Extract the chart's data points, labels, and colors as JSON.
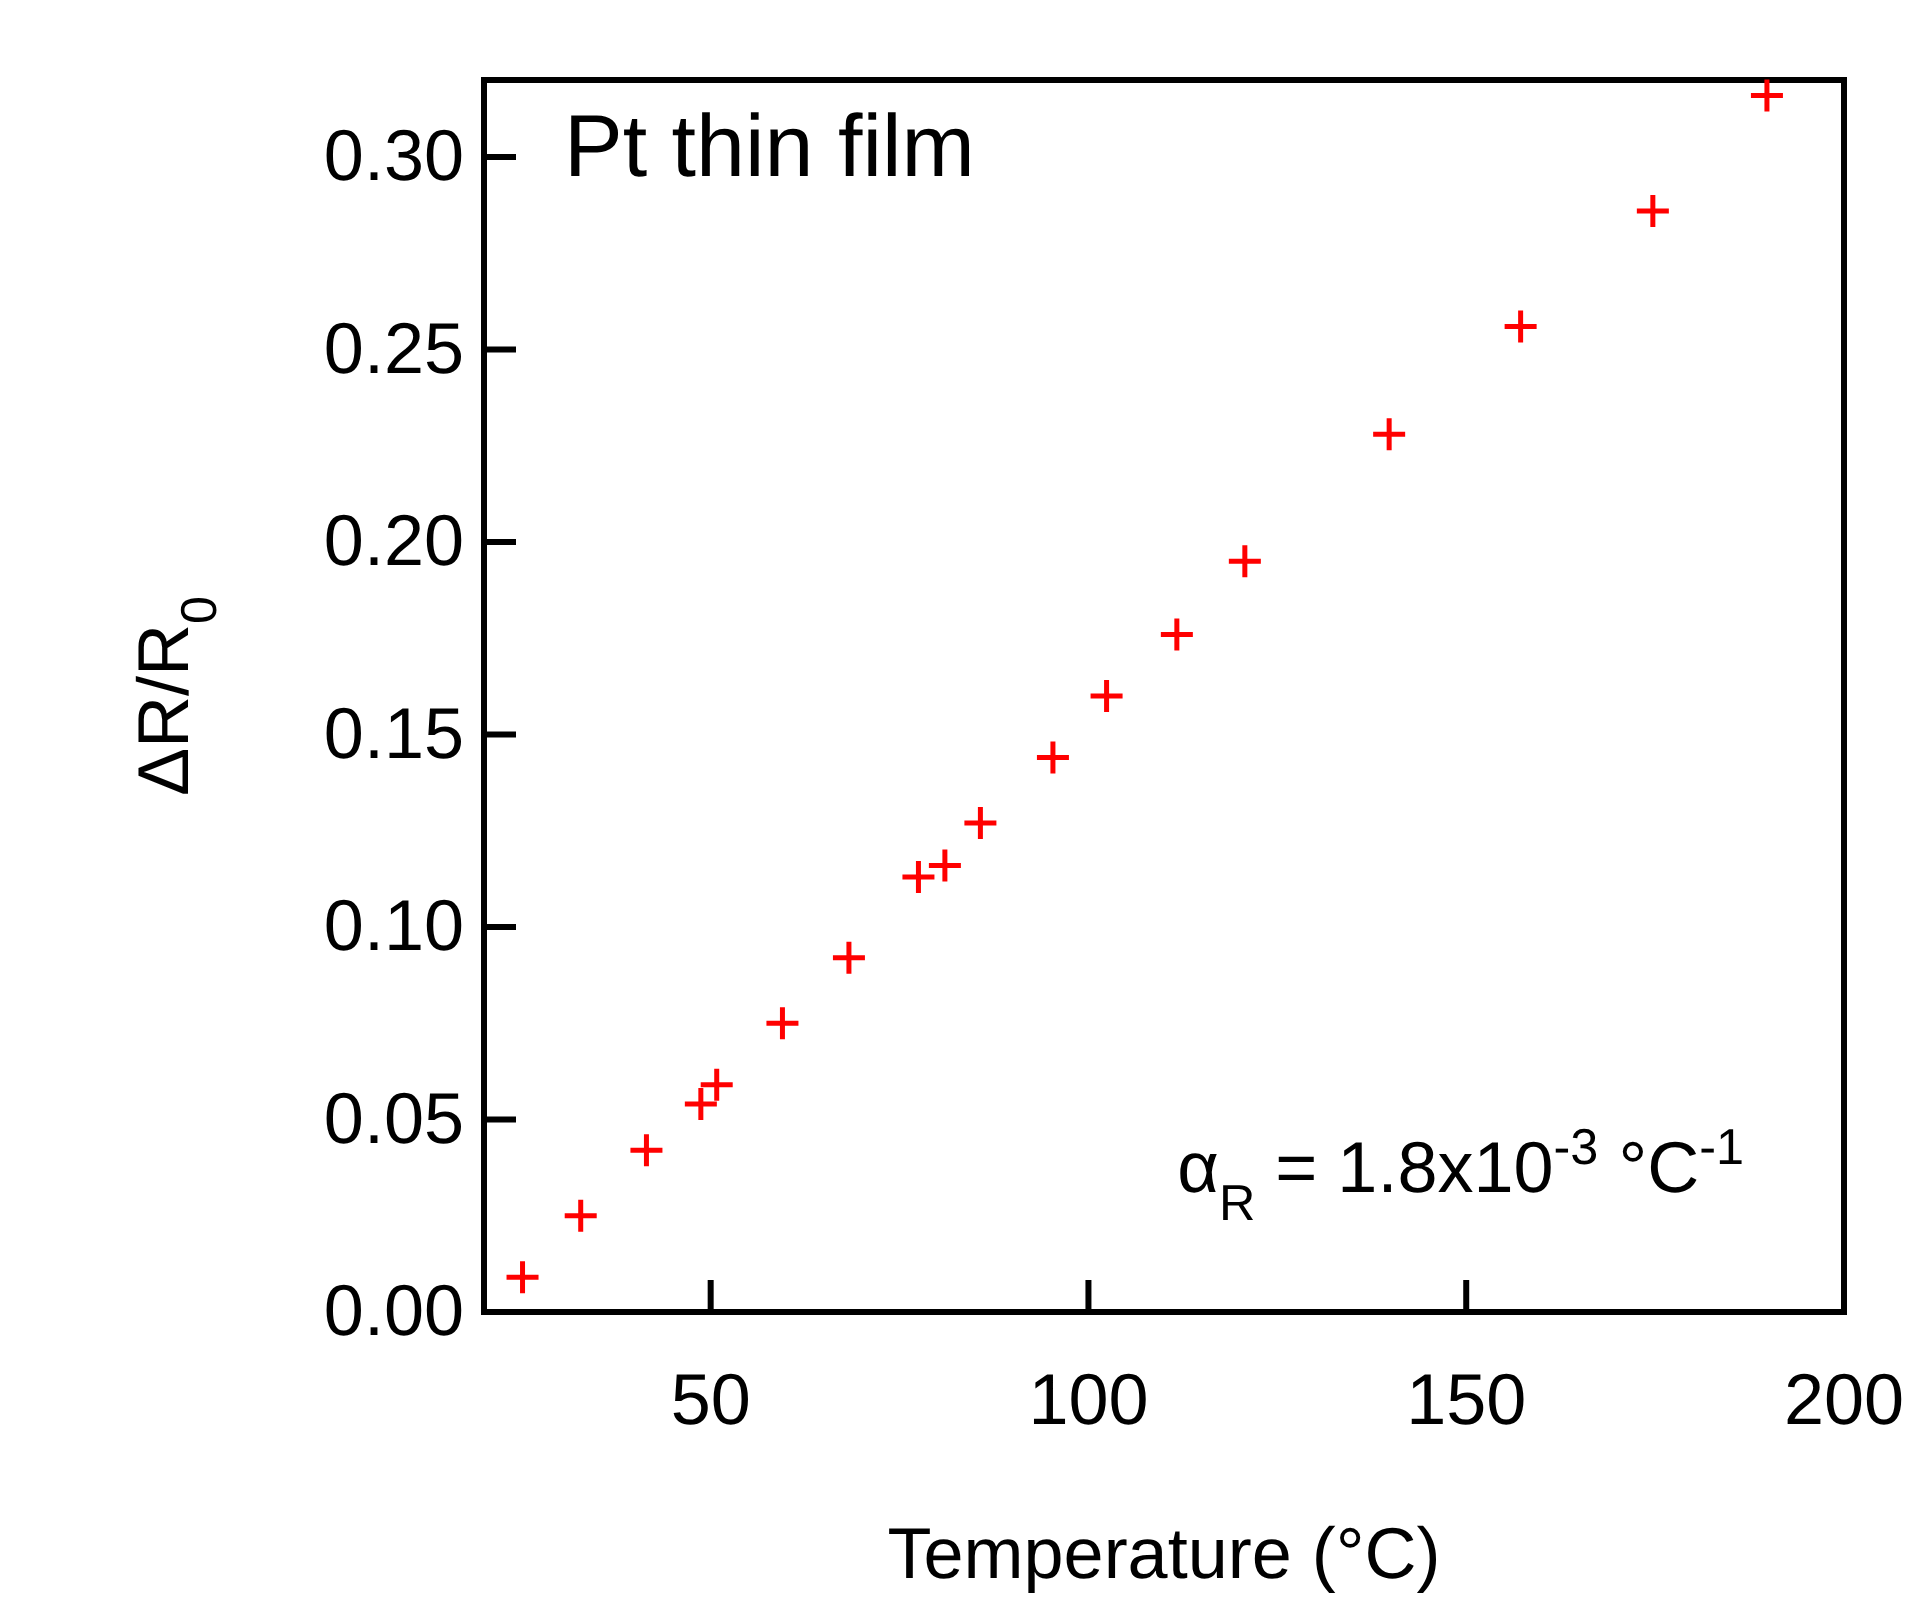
{
  "chart_data": {
    "type": "scatter",
    "xlabel": "Temperature (°C)",
    "ylabel": "ΔR/R$_{0}$",
    "x": [
      25.1,
      32.8,
      41.5,
      48.7,
      50.8,
      59.5,
      68.3,
      77.5,
      81.0,
      85.7,
      95.3,
      102.4,
      111.7,
      120.7,
      139.8,
      157.2,
      174.7,
      189.8
    ],
    "series": [
      {
        "color": "#ff0000",
        "values": [
          0.009,
          0.025,
          0.042,
          0.054,
          0.059,
          0.075,
          0.092,
          0.113,
          0.116,
          0.127,
          0.144,
          0.16,
          0.176,
          0.195,
          0.228,
          0.256,
          0.286,
          0.316
        ]
      }
    ],
    "xlim": [
      20,
      200
    ],
    "xticks": [
      50,
      100,
      150,
      200
    ],
    "ylim": [
      0,
      0.32
    ],
    "yticks": [
      {
        "value": 0,
        "label": "0.00"
      },
      {
        "value": 0.05,
        "label": "0.05"
      },
      {
        "value": 0.1,
        "label": "0.10"
      },
      {
        "value": 0.15,
        "label": "0.15"
      },
      {
        "value": 0.2,
        "label": "0.20"
      },
      {
        "value": 0.25,
        "label": "0.25"
      },
      {
        "value": 0.3,
        "label": "0.30"
      }
    ],
    "marker": "cross",
    "grid": false,
    "annotations": [
      "Pt thin film",
      "α$_{R}$ = 1.8x10$^{-3}$ °C$^{-1}$"
    ]
  }
}
